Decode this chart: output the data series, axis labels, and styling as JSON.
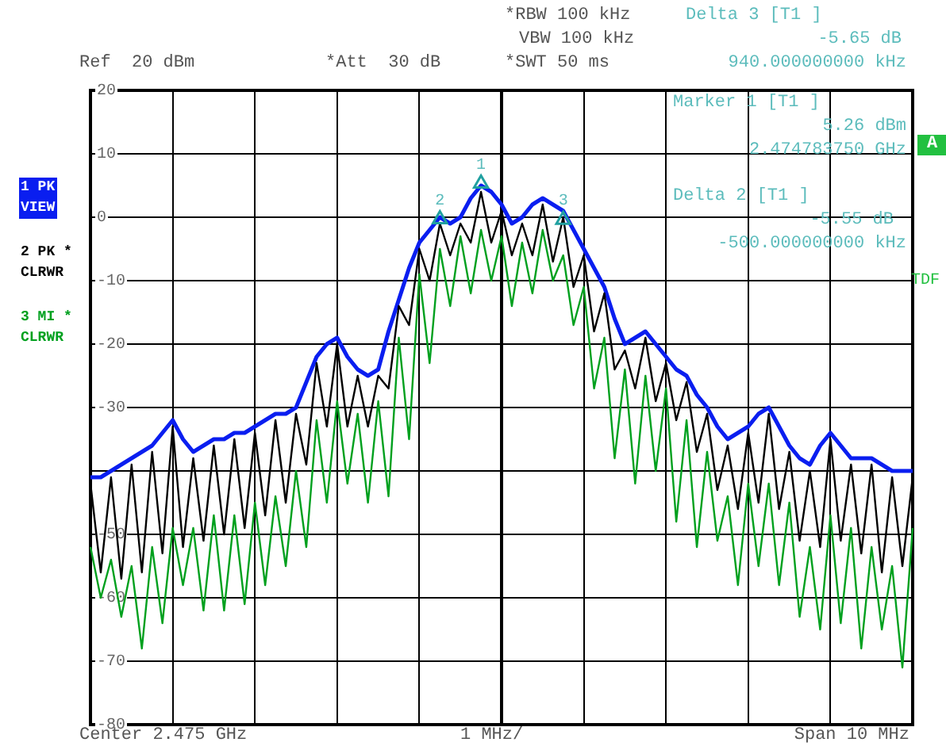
{
  "chart_data": {
    "type": "line",
    "grid": true,
    "marker": "none",
    "line_style": "solid",
    "categories": [
      null,
      null,
      null,
      null,
      null,
      null,
      null,
      null,
      null,
      null,
      null,
      null,
      null,
      null,
      null,
      null,
      null,
      null,
      null,
      null,
      null,
      null,
      null,
      null,
      null,
      null,
      null,
      null,
      null,
      null,
      null,
      null,
      null,
      null,
      null,
      null,
      null,
      null,
      null,
      null,
      null,
      null,
      null,
      null,
      null,
      null,
      null,
      null,
      null,
      null,
      null,
      null,
      null,
      null,
      null,
      null,
      null,
      null,
      null,
      null,
      null,
      null,
      null,
      null,
      null,
      null,
      null,
      null,
      null,
      null,
      null,
      null,
      null,
      null,
      null,
      null,
      null,
      null,
      null,
      null,
      null
    ],
    "ylim": [
      -80,
      20
    ],
    "yticks": [
      20,
      10,
      0,
      -10,
      -20,
      -30,
      {
        "value": -40,
        "label": null
      },
      -50,
      -60,
      -70,
      -80
    ],
    "annotations": [
      "*RBW 100 kHz",
      "VBW 100 kHz",
      "*SWT 50 ms",
      "Ref  20 dBm",
      "*Att  30 dB",
      "Delta 3 [T1 ]",
      "-5.65 dB",
      "940.000000000 kHz",
      "Marker 1 [T1 ]",
      "5.26 dBm",
      "2.474783750 GHz",
      "Delta 2 [T1 ]",
      "-5.55 dB",
      "-500.000000000 kHz",
      "Center 2.475 GHz",
      "1 MHz/",
      "Span 10 MHz",
      "A",
      "TDF",
      {
        "text": "2",
        "y": -0.3
      },
      {
        "text": "1",
        "y": 5.3
      },
      {
        "text": "3",
        "y": -0.4
      }
    ],
    "series": [
      {
        "name": "1 PK VIEW",
        "color": "#0a1ef0",
        "values": [
          -41,
          -41,
          -40,
          -39,
          -38,
          -37,
          -36,
          -34,
          -32,
          -35,
          -37,
          -36,
          -35,
          -35,
          -34,
          -34,
          -33,
          -32,
          -31,
          -31,
          -30,
          -26,
          -22,
          -20,
          -19,
          -22,
          -24,
          -25,
          -24,
          -18,
          -13,
          -8,
          -4,
          -2,
          0,
          -1,
          0,
          3,
          5,
          4,
          2,
          -1,
          0,
          2,
          3,
          2,
          1,
          -2,
          -5,
          -8,
          -11,
          -16,
          -20,
          -19,
          -18,
          -20,
          -22,
          -24,
          -25,
          -28,
          -30,
          -33,
          -35,
          -34,
          -33,
          -31,
          -30,
          -33,
          -36,
          -38,
          -39,
          -36,
          -34,
          -36,
          -38,
          -38,
          -38,
          -39,
          -40,
          -40,
          -40
        ]
      },
      {
        "name": "2 PK * CLRWR",
        "color": "#000000",
        "values": [
          -42,
          -56,
          -41,
          -57,
          -39,
          -56,
          -37,
          -53,
          -33,
          -52,
          -38,
          -51,
          -36,
          -50,
          -35,
          -49,
          -34,
          -47,
          -32,
          -45,
          -31,
          -39,
          -23,
          -33,
          -20,
          -33,
          -25,
          -33,
          -25,
          -27,
          -14,
          -17,
          -5,
          -10,
          -1,
          -6,
          -1,
          -4,
          4,
          -4,
          1,
          -6,
          -1,
          -6,
          2,
          -7,
          0,
          -11,
          -6,
          -18,
          -12,
          -24,
          -21,
          -27,
          -19,
          -29,
          -23,
          -32,
          -26,
          -37,
          -31,
          -43,
          -36,
          -46,
          -34,
          -45,
          -31,
          -46,
          -37,
          -51,
          -40,
          -52,
          -35,
          -51,
          -39,
          -53,
          -39,
          -56,
          -41,
          -55,
          -41
        ]
      },
      {
        "name": "3 MI * CLRWR",
        "color": "#00a01e",
        "values": [
          -52,
          -60,
          -54,
          -63,
          -55,
          -68,
          -52,
          -64,
          -49,
          -58,
          -49,
          -62,
          -47,
          -62,
          -47,
          -61,
          -45,
          -58,
          -44,
          -55,
          -40,
          -52,
          -32,
          -45,
          -29,
          -42,
          -31,
          -45,
          -29,
          -44,
          -19,
          -35,
          -9,
          -23,
          -5,
          -14,
          -3,
          -12,
          -2,
          -10,
          -3,
          -14,
          -4,
          -12,
          -2,
          -10,
          -6,
          -17,
          -11,
          -27,
          -19,
          -38,
          -24,
          -42,
          -25,
          -40,
          -27,
          -48,
          -32,
          -52,
          -37,
          -51,
          -44,
          -58,
          -42,
          -55,
          -42,
          -58,
          -45,
          -63,
          -52,
          -65,
          -47,
          -64,
          -49,
          -68,
          -52,
          -65,
          -55,
          -71,
          -49
        ]
      },
      {
        "type": "scatter",
        "color": "#20a0a0",
        "marker": "triangle",
        "values": [
          null,
          null,
          null,
          null,
          null,
          null,
          null,
          null,
          null,
          null,
          null,
          null,
          null,
          null,
          null,
          null,
          null,
          null,
          null,
          null,
          null,
          null,
          null,
          null,
          null,
          null,
          null,
          null,
          null,
          null,
          null,
          null,
          null,
          null,
          -0.3,
          null,
          null,
          null,
          5.3,
          null,
          null,
          null,
          null,
          null,
          null,
          null,
          -0.4,
          null,
          null,
          null,
          null,
          null,
          null,
          null,
          null,
          null,
          null,
          null,
          null,
          null,
          null,
          null,
          null,
          null,
          null,
          null,
          null,
          null,
          null,
          null,
          null,
          null,
          null,
          null,
          null,
          null,
          null,
          null,
          null,
          null,
          null
        ],
        "name": null
      }
    ]
  }
}
